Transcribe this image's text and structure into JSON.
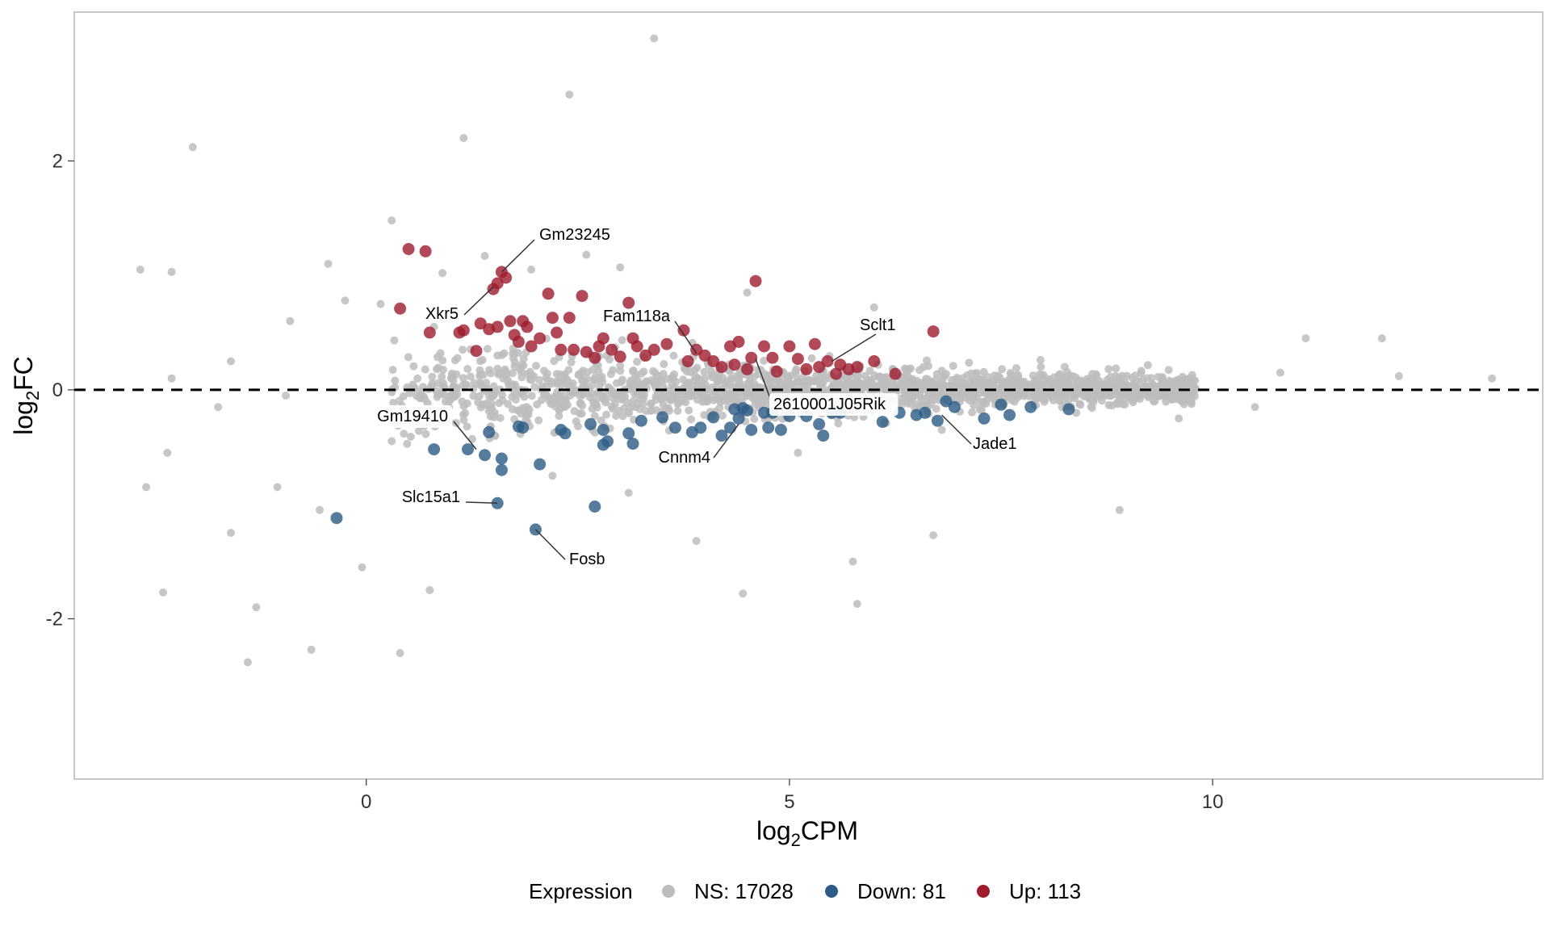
{
  "chart_data": {
    "type": "scatter",
    "title": "",
    "xlabel": "log2CPM",
    "ylabel": "log2FC",
    "xlim": [
      -3.45,
      13.9
    ],
    "ylim": [
      -3.4,
      3.3
    ],
    "x_ticks": [
      0,
      5,
      10
    ],
    "x_tick_labels": [
      "0",
      "5",
      "10"
    ],
    "y_ticks": [
      -2,
      0,
      2
    ],
    "y_tick_labels": [
      "-2",
      "0",
      "2"
    ],
    "grid": false,
    "reference_line": {
      "y": 0,
      "style": "dashed"
    },
    "legend": {
      "title": "Expression",
      "position": "bottom",
      "entries": [
        {
          "label": "NS: 17028",
          "color": "#bdbdbd"
        },
        {
          "label": "Down: 81",
          "color": "#2c5b85"
        },
        {
          "label": "Up: 113",
          "color": "#9e1b2e"
        }
      ]
    },
    "series": [
      {
        "name": "NS: 17028",
        "color": "#bdbdbd",
        "note": "dense band of ~17028 points centred on log2FC 0 from log2CPM ~0.3 to ~10; representative outliers listed",
        "points": [
          [
            3.4,
            3.07
          ],
          [
            2.4,
            2.58
          ],
          [
            -2.05,
            2.12
          ],
          [
            1.15,
            2.2
          ],
          [
            -2.67,
            1.05
          ],
          [
            -2.3,
            1.03
          ],
          [
            0.3,
            1.48
          ],
          [
            -0.45,
            1.1
          ],
          [
            1.4,
            1.17
          ],
          [
            2.6,
            1.18
          ],
          [
            0.9,
            1.02
          ],
          [
            1.95,
            1.05
          ],
          [
            3.0,
            1.07
          ],
          [
            -0.25,
            0.78
          ],
          [
            0.17,
            0.75
          ],
          [
            -0.9,
            0.6
          ],
          [
            0.8,
            0.55
          ],
          [
            -2.3,
            0.1
          ],
          [
            -1.6,
            0.25
          ],
          [
            -0.95,
            -0.05
          ],
          [
            -1.75,
            -0.15
          ],
          [
            -2.35,
            -0.55
          ],
          [
            -2.6,
            -0.85
          ],
          [
            -1.05,
            -0.85
          ],
          [
            -0.55,
            -1.05
          ],
          [
            -1.6,
            -1.25
          ],
          [
            -2.4,
            -1.77
          ],
          [
            -1.3,
            -1.9
          ],
          [
            -1.4,
            -2.38
          ],
          [
            -0.65,
            -2.27
          ],
          [
            0.4,
            -2.3
          ],
          [
            -0.05,
            -1.55
          ],
          [
            0.75,
            -1.75
          ],
          [
            3.9,
            -1.32
          ],
          [
            4.45,
            -1.78
          ],
          [
            5.75,
            -1.5
          ],
          [
            5.8,
            -1.87
          ],
          [
            6.7,
            -1.27
          ],
          [
            8.9,
            -1.05
          ],
          [
            9.6,
            -0.25
          ],
          [
            10.5,
            -0.15
          ],
          [
            10.8,
            0.15
          ],
          [
            11.1,
            0.45
          ],
          [
            12.0,
            0.45
          ],
          [
            12.2,
            0.12
          ],
          [
            13.3,
            0.1
          ],
          [
            2.2,
            -0.75
          ],
          [
            3.1,
            -0.9
          ],
          [
            5.1,
            -0.55
          ],
          [
            6.0,
            0.72
          ],
          [
            4.5,
            0.85
          ],
          [
            1.55,
            0.3
          ],
          [
            6.8,
            -0.35
          ]
        ]
      },
      {
        "name": "Down: 81",
        "color": "#2c5b85",
        "points": [
          [
            -0.35,
            -1.12
          ],
          [
            0.8,
            -0.52
          ],
          [
            1.2,
            -0.52
          ],
          [
            1.4,
            -0.57
          ],
          [
            1.45,
            -0.37
          ],
          [
            1.55,
            -0.99
          ],
          [
            1.6,
            -0.6
          ],
          [
            1.6,
            -0.7
          ],
          [
            1.85,
            -0.33
          ],
          [
            1.8,
            -0.32
          ],
          [
            2.0,
            -1.22
          ],
          [
            2.05,
            -0.65
          ],
          [
            2.3,
            -0.35
          ],
          [
            2.35,
            -0.38
          ],
          [
            2.7,
            -1.02
          ],
          [
            2.65,
            -0.3
          ],
          [
            2.8,
            -0.35
          ],
          [
            2.8,
            -0.48
          ],
          [
            2.85,
            -0.45
          ],
          [
            3.1,
            -0.38
          ],
          [
            3.15,
            -0.47
          ],
          [
            3.25,
            -0.27
          ],
          [
            3.5,
            -0.24
          ],
          [
            3.65,
            -0.33
          ],
          [
            3.85,
            -0.37
          ],
          [
            3.95,
            -0.33
          ],
          [
            4.1,
            -0.24
          ],
          [
            4.2,
            -0.4
          ],
          [
            4.3,
            -0.33
          ],
          [
            4.35,
            -0.17
          ],
          [
            4.4,
            -0.25
          ],
          [
            4.45,
            -0.16
          ],
          [
            4.5,
            -0.18
          ],
          [
            4.55,
            -0.35
          ],
          [
            4.7,
            -0.2
          ],
          [
            4.75,
            -0.33
          ],
          [
            4.8,
            -0.2
          ],
          [
            4.9,
            -0.35
          ],
          [
            5.0,
            -0.23
          ],
          [
            5.2,
            -0.23
          ],
          [
            5.35,
            -0.3
          ],
          [
            5.4,
            -0.4
          ],
          [
            5.5,
            -0.2
          ],
          [
            5.6,
            -0.2
          ],
          [
            6.1,
            -0.28
          ],
          [
            6.3,
            -0.2
          ],
          [
            6.5,
            -0.22
          ],
          [
            6.6,
            -0.2
          ],
          [
            6.75,
            -0.27
          ],
          [
            6.85,
            -0.1
          ],
          [
            6.95,
            -0.15
          ],
          [
            7.3,
            -0.25
          ],
          [
            7.5,
            -0.13
          ],
          [
            7.6,
            -0.22
          ],
          [
            7.85,
            -0.15
          ],
          [
            8.3,
            -0.17
          ]
        ]
      },
      {
        "name": "Up: 113",
        "color": "#9e1b2e",
        "points": [
          [
            0.5,
            1.23
          ],
          [
            0.7,
            1.21
          ],
          [
            0.4,
            0.71
          ],
          [
            0.75,
            0.5
          ],
          [
            1.1,
            0.5
          ],
          [
            1.15,
            0.52
          ],
          [
            1.3,
            0.34
          ],
          [
            1.35,
            0.58
          ],
          [
            1.45,
            0.53
          ],
          [
            1.55,
            0.55
          ],
          [
            1.5,
            0.88
          ],
          [
            1.55,
            0.93
          ],
          [
            1.6,
            1.03
          ],
          [
            1.65,
            0.98
          ],
          [
            1.7,
            0.6
          ],
          [
            1.75,
            0.48
          ],
          [
            1.8,
            0.42
          ],
          [
            1.85,
            0.6
          ],
          [
            1.9,
            0.55
          ],
          [
            1.95,
            0.38
          ],
          [
            2.05,
            0.45
          ],
          [
            2.15,
            0.84
          ],
          [
            2.2,
            0.63
          ],
          [
            2.25,
            0.5
          ],
          [
            2.3,
            0.35
          ],
          [
            2.4,
            0.63
          ],
          [
            2.45,
            0.35
          ],
          [
            2.55,
            0.82
          ],
          [
            2.6,
            0.33
          ],
          [
            2.7,
            0.28
          ],
          [
            2.75,
            0.38
          ],
          [
            2.8,
            0.45
          ],
          [
            2.9,
            0.35
          ],
          [
            3.0,
            0.29
          ],
          [
            3.1,
            0.76
          ],
          [
            3.15,
            0.45
          ],
          [
            3.2,
            0.38
          ],
          [
            3.3,
            0.3
          ],
          [
            3.4,
            0.35
          ],
          [
            3.55,
            0.4
          ],
          [
            3.75,
            0.52
          ],
          [
            3.8,
            0.25
          ],
          [
            3.9,
            0.35
          ],
          [
            4.0,
            0.3
          ],
          [
            4.1,
            0.25
          ],
          [
            4.2,
            0.2
          ],
          [
            4.3,
            0.38
          ],
          [
            4.35,
            0.22
          ],
          [
            4.4,
            0.42
          ],
          [
            4.5,
            0.18
          ],
          [
            4.55,
            0.28
          ],
          [
            4.6,
            0.95
          ],
          [
            4.7,
            0.38
          ],
          [
            4.8,
            0.28
          ],
          [
            4.85,
            0.16
          ],
          [
            5.0,
            0.38
          ],
          [
            5.1,
            0.27
          ],
          [
            5.2,
            0.18
          ],
          [
            5.3,
            0.4
          ],
          [
            5.35,
            0.2
          ],
          [
            5.45,
            0.25
          ],
          [
            5.55,
            0.14
          ],
          [
            5.6,
            0.22
          ],
          [
            5.7,
            0.18
          ],
          [
            5.8,
            0.2
          ],
          [
            6.0,
            0.25
          ],
          [
            6.25,
            0.14
          ],
          [
            6.7,
            0.51
          ]
        ]
      }
    ],
    "annotations": [
      {
        "label": "Gm23245",
        "x": 1.6,
        "y": 1.03
      },
      {
        "label": "Xkr5",
        "x": 1.5,
        "y": 0.9
      },
      {
        "label": "Fam118a",
        "x": 3.9,
        "y": 0.32
      },
      {
        "label": "Sclt1",
        "x": 5.5,
        "y": 0.25
      },
      {
        "label": "2610001J05Rik",
        "x": 4.6,
        "y": 0.27
      },
      {
        "label": "Gm19410",
        "x": 1.3,
        "y": -0.52
      },
      {
        "label": "Cnnm4",
        "x": 4.4,
        "y": -0.3
      },
      {
        "label": "Jade1",
        "x": 6.8,
        "y": -0.22
      },
      {
        "label": "Slc15a1",
        "x": 1.55,
        "y": -0.99
      },
      {
        "label": "Fosb",
        "x": 2.0,
        "y": -1.22
      }
    ]
  }
}
